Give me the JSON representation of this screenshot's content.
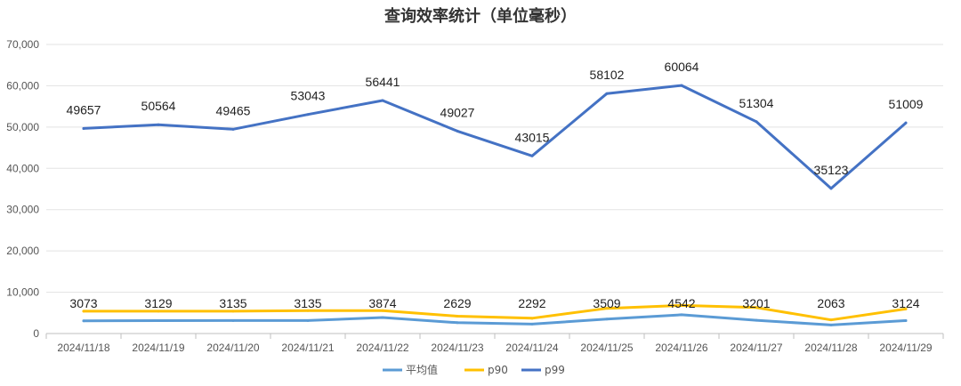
{
  "chart_data": {
    "type": "line",
    "title": "查询效率统计（单位毫秒）",
    "xlabel": "",
    "ylabel": "",
    "ylim": [
      0,
      70000
    ],
    "y_ticks": [
      "0",
      "10,000",
      "20,000",
      "30,000",
      "40,000",
      "50,000",
      "60,000",
      "70,000"
    ],
    "grid": true,
    "legend_position": "bottom",
    "categories": [
      "2024/11/18",
      "2024/11/19",
      "2024/11/20",
      "2024/11/21",
      "2024/11/22",
      "2024/11/23",
      "2024/11/24",
      "2024/11/25",
      "2024/11/26",
      "2024/11/27",
      "2024/11/28",
      "2024/11/29"
    ],
    "series": [
      {
        "name": "平均值",
        "color": "#5B9BD5",
        "values": [
          3073,
          3129,
          3135,
          3135,
          3874,
          2629,
          2292,
          3509,
          4542,
          3201,
          2063,
          3124
        ],
        "show_labels": true
      },
      {
        "name": "p90",
        "color": "#FFC000",
        "values": [
          5400,
          5400,
          5400,
          5550,
          5550,
          4200,
          3700,
          6100,
          6800,
          6300,
          3300,
          5950
        ],
        "show_labels": false
      },
      {
        "name": "p99",
        "color": "#4472C4",
        "values": [
          49657,
          50564,
          49465,
          53043,
          56441,
          49027,
          43015,
          58102,
          60064,
          51304,
          35123,
          51009
        ],
        "show_labels": true
      }
    ]
  }
}
